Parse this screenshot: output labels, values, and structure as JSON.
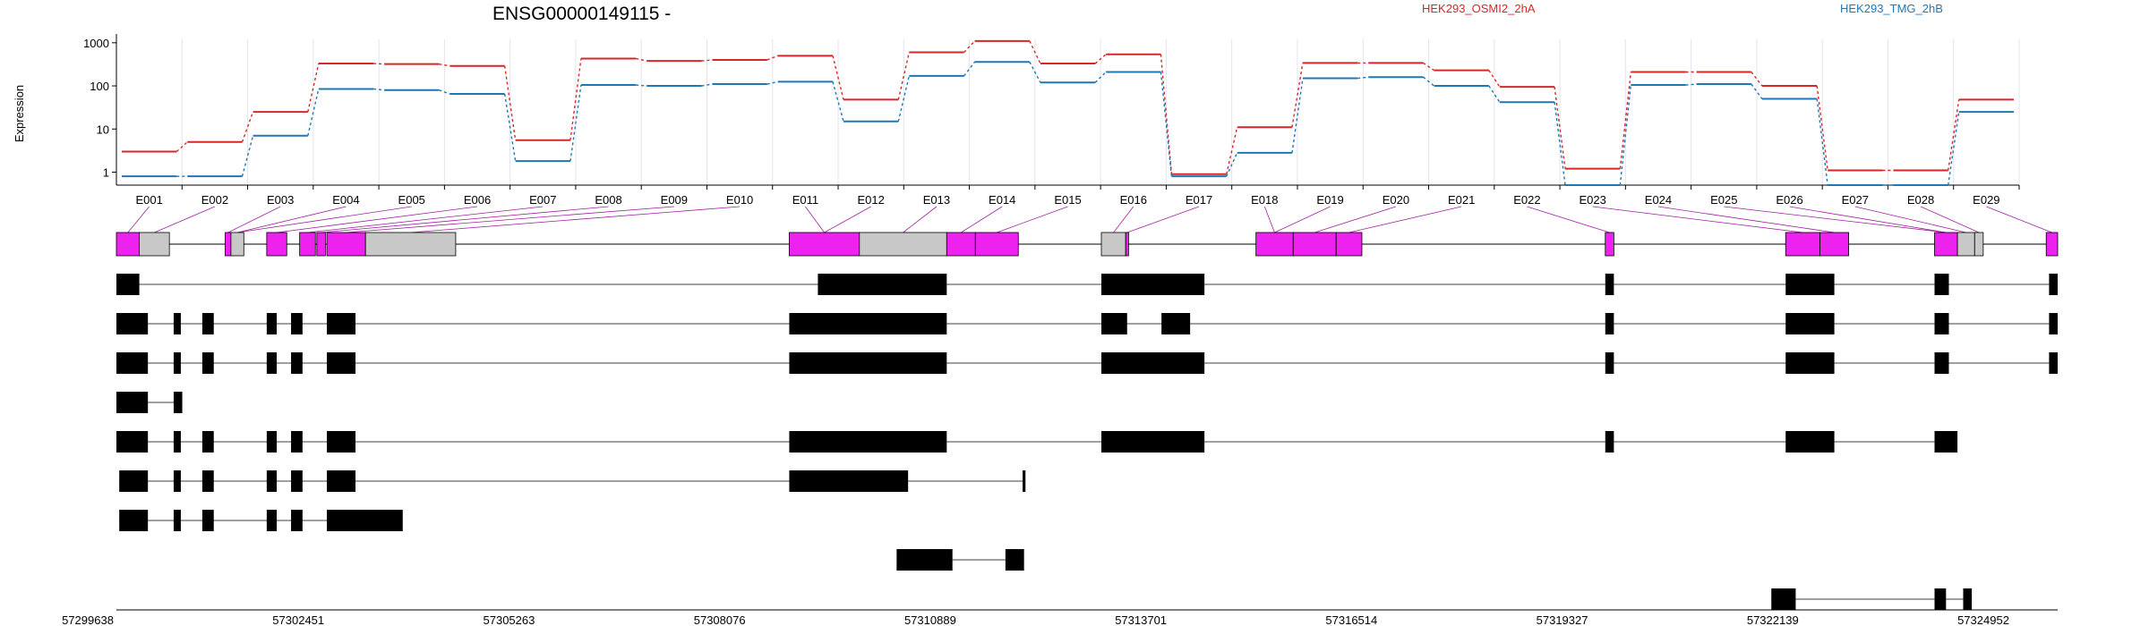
{
  "chart_data": {
    "type": "line",
    "title": "ENSG00000149115 -",
    "ylabel": "Expression",
    "yscale": "log",
    "ylim": [
      0.5,
      1200
    ],
    "yticks": [
      "1",
      "10",
      "100",
      "1000"
    ],
    "categories": [
      "E001",
      "E002",
      "E003",
      "E004",
      "E005",
      "E006",
      "E007",
      "E008",
      "E009",
      "E010",
      "E011",
      "E012",
      "E013",
      "E014",
      "E015",
      "E016",
      "E017",
      "E018",
      "E019",
      "E020",
      "E021",
      "E022",
      "E023",
      "E024",
      "E025",
      "E026",
      "E027",
      "E028",
      "E029"
    ],
    "grid": "vertical",
    "legend": "top-right",
    "series": [
      {
        "name": "HEK293_OSMI2_2hA",
        "color": "#d62728",
        "values": [
          3,
          5,
          25,
          330,
          320,
          290,
          5.5,
          430,
          380,
          400,
          500,
          48,
          600,
          1100,
          330,
          540,
          0.9,
          11,
          340,
          340,
          230,
          95,
          1.2,
          210,
          210,
          100,
          1.1,
          1.1,
          48
        ]
      },
      {
        "name": "HEK293_TMG_2hB",
        "color": "#1f77b4",
        "values": [
          0.8,
          0.8,
          7,
          85,
          80,
          65,
          1.8,
          105,
          100,
          110,
          125,
          15,
          170,
          360,
          120,
          210,
          0.8,
          2.8,
          150,
          160,
          100,
          42,
          0.5,
          105,
          110,
          50,
          0.5,
          0.5,
          25
        ]
      }
    ]
  },
  "gene_model": {
    "coordinate_labels": [
      "57299638",
      "57302451",
      "57305263",
      "57308076",
      "57310889",
      "57313701",
      "57316514",
      "57319327",
      "57322139",
      "57324952"
    ],
    "exon_color": "#ee22ee",
    "noncoding_color": "#c8c8c8",
    "transcript_color": "#000000"
  }
}
